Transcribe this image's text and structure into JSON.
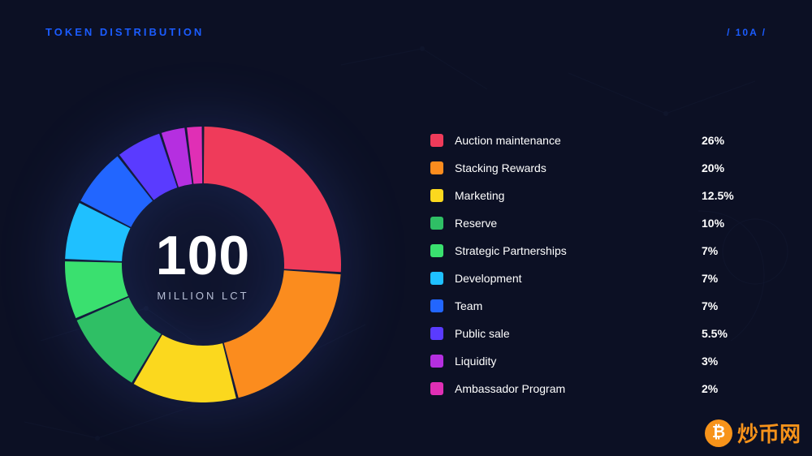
{
  "header": {
    "title": "TOKEN DISTRIBUTION",
    "page_code": "/ 10A /",
    "title_color": "#1b5cff"
  },
  "background": {
    "page_bg": "#0c1024",
    "decor_stroke": "#2a3860",
    "decor_opacity": 0.12
  },
  "chart": {
    "type": "donut",
    "center_value": "100",
    "center_subtitle": "MILLION LCT",
    "center_value_fontsize": 68,
    "center_sub_fontsize": 13,
    "center_value_color": "#ffffff",
    "center_sub_color": "#b8c0d6",
    "outer_radius": 170,
    "inner_radius": 100,
    "gap_deg": 1.0,
    "glow_color": "rgba(80,120,255,0.22)",
    "start_angle_deg": -90,
    "slices": [
      {
        "label": "Auction maintenance",
        "pct": 26,
        "pct_text": "26%",
        "color": "#ef3b5a"
      },
      {
        "label": "Stacking Rewards",
        "pct": 20,
        "pct_text": "20%",
        "color": "#fb8c1e"
      },
      {
        "label": "Marketing",
        "pct": 12.5,
        "pct_text": "12.5%",
        "color": "#fbd81e"
      },
      {
        "label": "Reserve",
        "pct": 10,
        "pct_text": "10%",
        "color": "#2fbf65"
      },
      {
        "label": "Strategic Partnerships",
        "pct": 7,
        "pct_text": "7%",
        "color": "#3ae06f"
      },
      {
        "label": "Development",
        "pct": 7,
        "pct_text": "7%",
        "color": "#1fc0ff"
      },
      {
        "label": "Team",
        "pct": 7,
        "pct_text": "7%",
        "color": "#2266ff"
      },
      {
        "label": "Public sale",
        "pct": 5.5,
        "pct_text": "5.5%",
        "color": "#5a3bff"
      },
      {
        "label": "Liquidity",
        "pct": 3,
        "pct_text": "3%",
        "color": "#b52fe0"
      },
      {
        "label": "Ambassador Program",
        "pct": 2,
        "pct_text": "2%",
        "color": "#e02fb5"
      }
    ]
  },
  "legend": {
    "label_fontsize": 14,
    "label_color": "#ffffff",
    "pct_fontweight": 700,
    "swatch_size": 16,
    "swatch_radius": 3,
    "row_gap": 18
  },
  "watermark": {
    "icon_glyph": "₿",
    "icon_bg": "#f7931a",
    "text": "炒币网",
    "text_color": "#f7931a"
  }
}
